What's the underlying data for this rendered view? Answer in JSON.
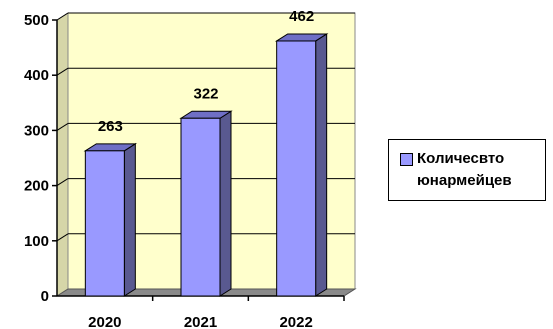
{
  "chart_data": {
    "type": "bar",
    "categories": [
      "2020",
      "2021",
      "2022"
    ],
    "series": [
      {
        "name": "Количесвто юнармейцев",
        "values": [
          263,
          322,
          462
        ]
      }
    ],
    "y_ticks": [
      "0",
      "100",
      "200",
      "300",
      "400",
      "500"
    ],
    "ylim": [
      0,
      500
    ],
    "title": "",
    "xlabel": "",
    "ylabel": "",
    "grid": true,
    "legend_position": "right",
    "colors": {
      "bar_front": "#9999ff",
      "bar_side": "#595990",
      "bar_top": "#6f6fc6",
      "back_wall": "#ffffcc",
      "floor": "#8a8a8a"
    }
  }
}
